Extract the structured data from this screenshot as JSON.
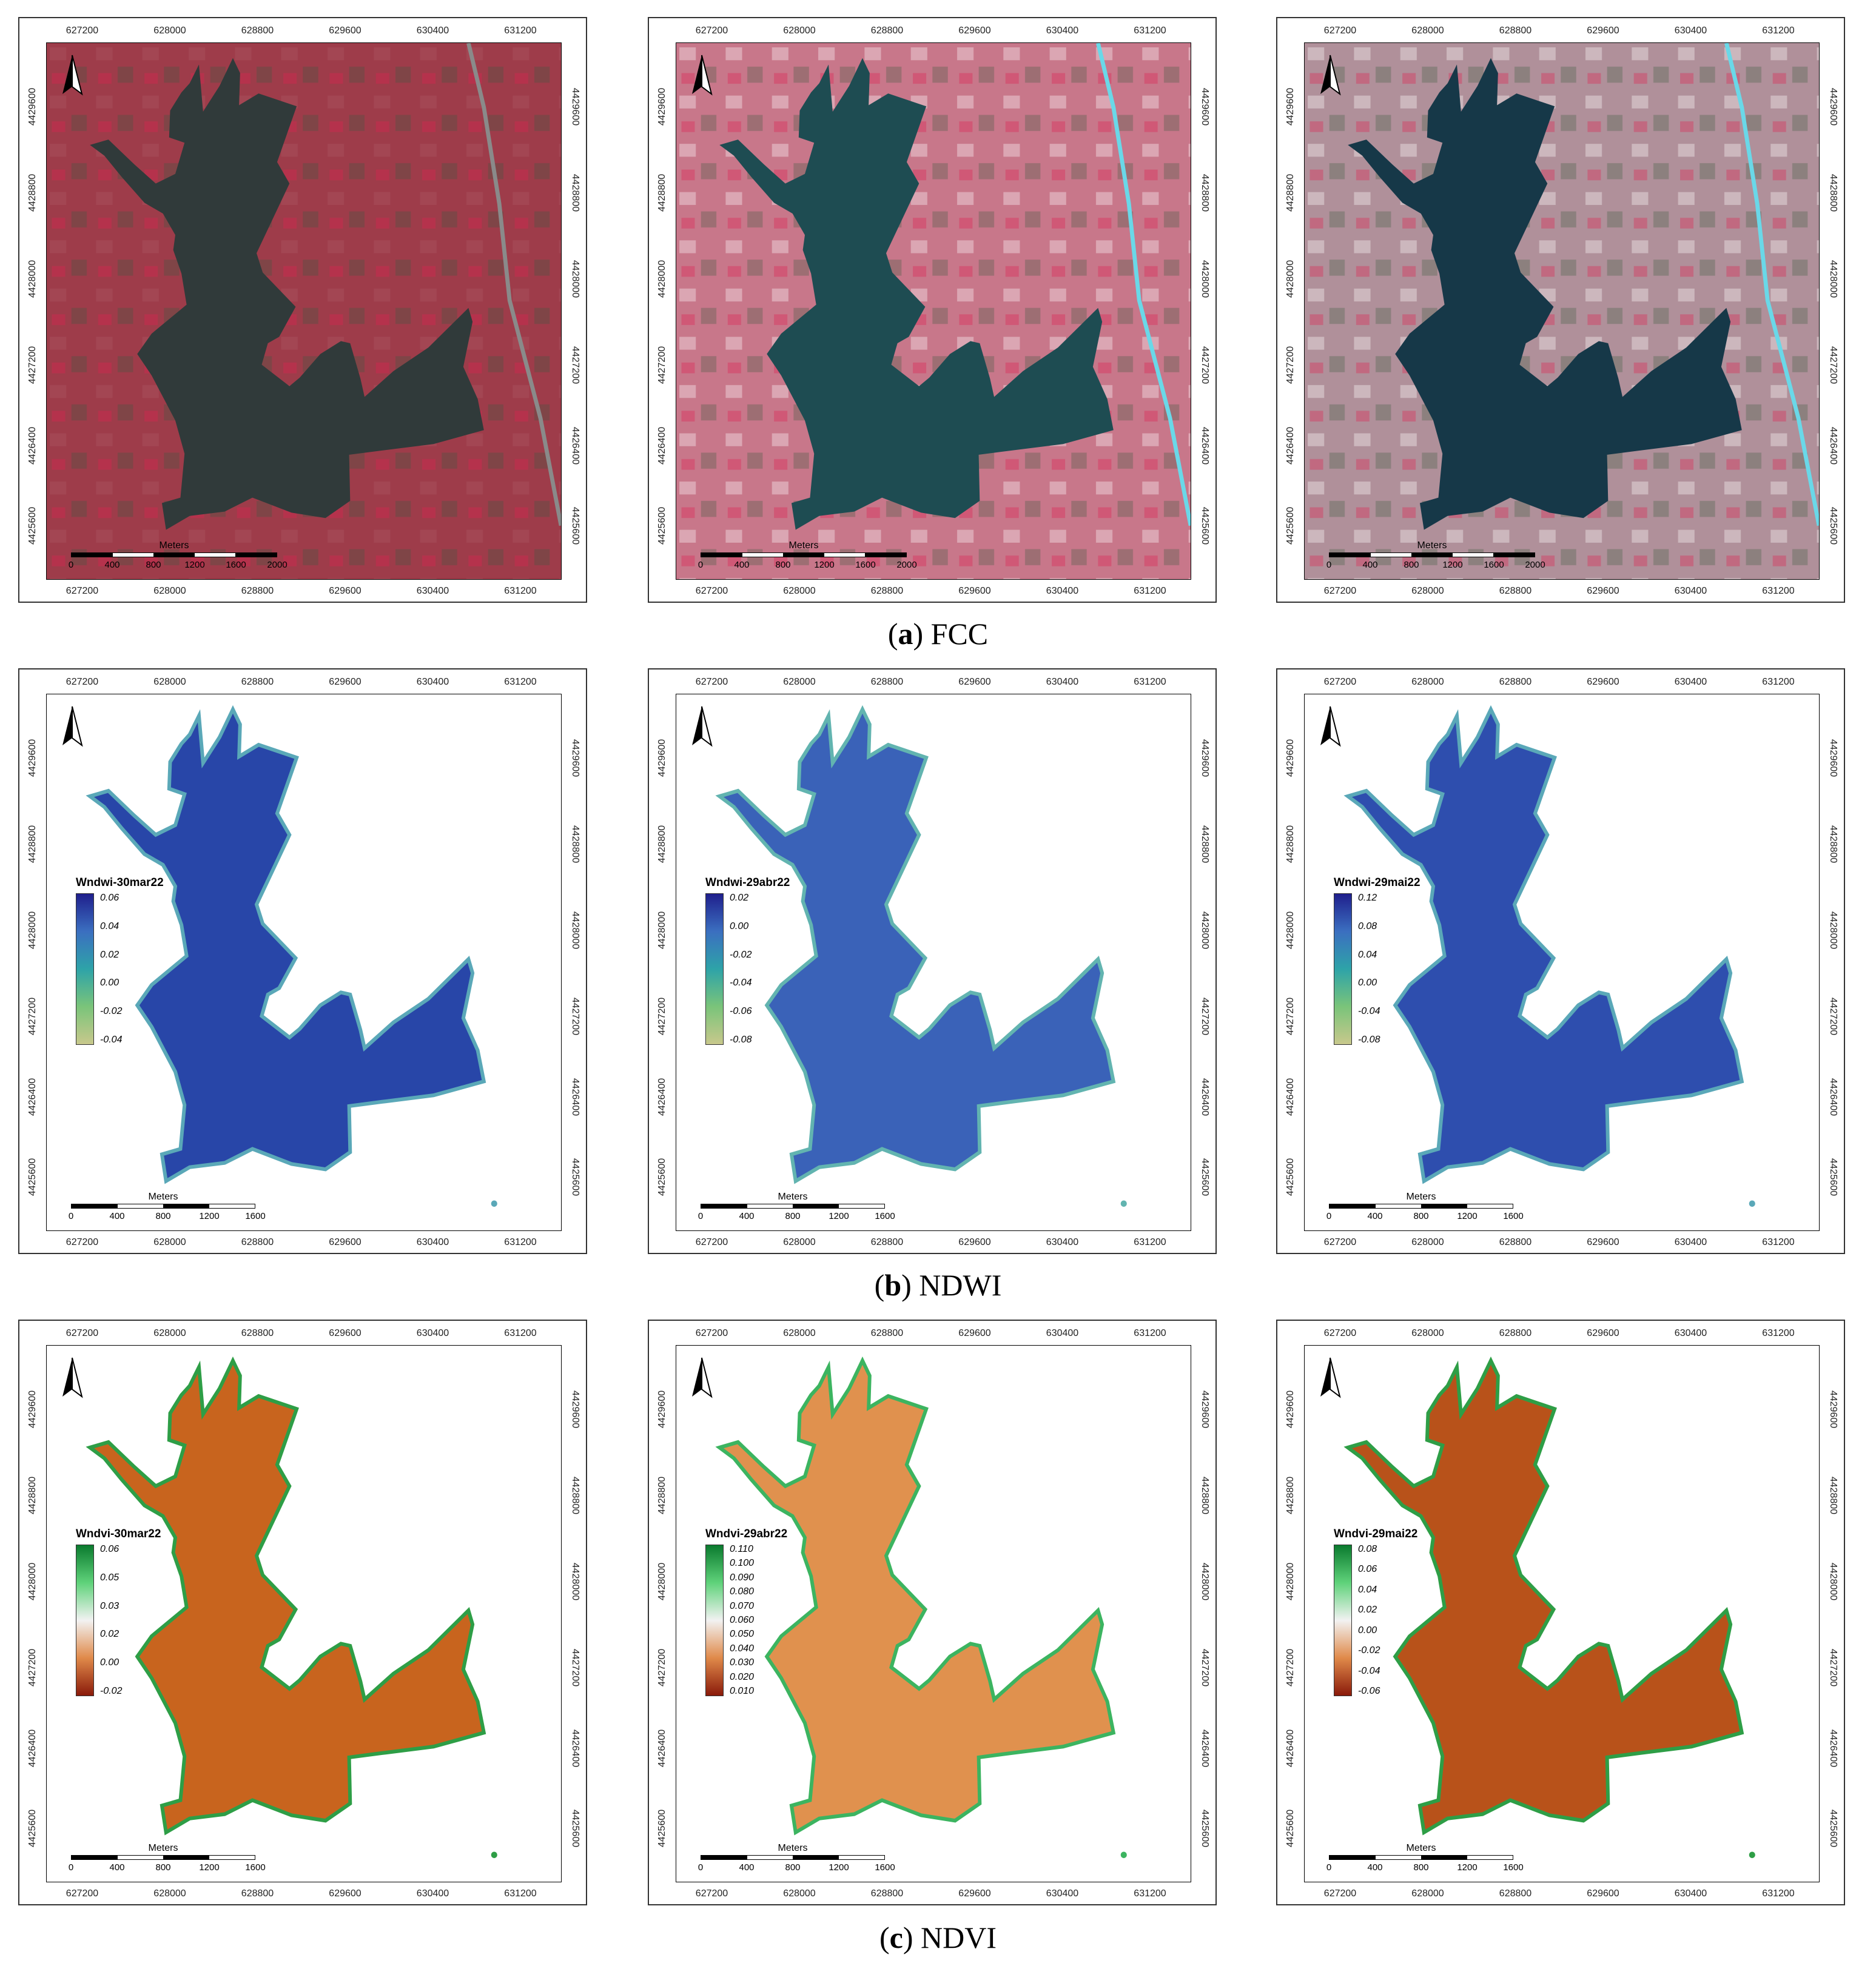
{
  "x_ticks": [
    "627200",
    "628000",
    "628800",
    "629600",
    "630400",
    "631200"
  ],
  "y_ticks": [
    "4425600",
    "4426400",
    "4427200",
    "4428000",
    "4428800",
    "4429600"
  ],
  "sections": [
    {
      "caption_letter": "a",
      "caption_text": " FCC",
      "panels": [
        {
          "type": "fcc",
          "scale_title": "Meters",
          "scale_labels": [
            "0",
            "400",
            "800",
            "1200",
            "1600",
            "2000"
          ],
          "colors": {
            "bg": "#9e3c4a",
            "water": "#303a3a"
          }
        },
        {
          "type": "fcc",
          "scale_title": "Meters",
          "scale_labels": [
            "0",
            "400",
            "800",
            "1200",
            "1600",
            "2000"
          ],
          "colors": {
            "bg": "#c8778a",
            "water": "#1e4c52"
          }
        },
        {
          "type": "fcc",
          "scale_title": "Meters",
          "scale_labels": [
            "0",
            "400",
            "800",
            "1200",
            "1600",
            "2000"
          ],
          "colors": {
            "bg": "#b0909a",
            "water": "#163848"
          }
        }
      ]
    },
    {
      "caption_letter": "b",
      "caption_text": " NDWI",
      "panels": [
        {
          "type": "index",
          "legend_title": "Wndwi-30mar22",
          "legend_labels": [
            "0.06",
            "0.04",
            "0.02",
            "0.00",
            "-0.02",
            "-0.04"
          ],
          "ramp": [
            "#1f1f8c",
            "#3b6fc0",
            "#2ea3a8",
            "#7ac47a",
            "#c8c88c"
          ],
          "colors": {
            "water": "#2846a8",
            "edge": "#5aa8b8"
          },
          "scale_title": "Meters",
          "scale_labels": [
            "0",
            "400",
            "800",
            "1200",
            "1600"
          ]
        },
        {
          "type": "index",
          "legend_title": "Wndwi-29abr22",
          "legend_labels": [
            "0.02",
            "0.00",
            "-0.02",
            "-0.04",
            "-0.06",
            "-0.08"
          ],
          "ramp": [
            "#1f1f8c",
            "#3b6fc0",
            "#2ea3a8",
            "#7ac47a",
            "#c8c88c"
          ],
          "colors": {
            "water": "#3a62b8",
            "edge": "#62b4b0"
          },
          "scale_title": "Meters",
          "scale_labels": [
            "0",
            "400",
            "800",
            "1200",
            "1600"
          ]
        },
        {
          "type": "index",
          "legend_title": "Wndwi-29mai22",
          "legend_labels": [
            "0.12",
            "0.08",
            "0.04",
            "0.00",
            "-0.04",
            "-0.08"
          ],
          "ramp": [
            "#1f1f8c",
            "#3b6fc0",
            "#2ea3a8",
            "#7ac47a",
            "#c8c88c"
          ],
          "colors": {
            "water": "#2e4eae",
            "edge": "#5aa8b8"
          },
          "scale_title": "Meters",
          "scale_labels": [
            "0",
            "400",
            "800",
            "1200",
            "1600"
          ]
        }
      ]
    },
    {
      "caption_letter": "c",
      "caption_text": " NDVI",
      "panels": [
        {
          "type": "index",
          "legend_title": "Wndvi-30mar22",
          "legend_labels": [
            "0.06",
            "0.05",
            "0.03",
            "0.02",
            "0.00",
            "-0.02"
          ],
          "ramp": [
            "#0a7a2e",
            "#5fd27a",
            "#f2f2f2",
            "#e08a4a",
            "#8a1a0a"
          ],
          "colors": {
            "water": "#c8641e",
            "edge": "#2e9e46"
          },
          "scale_title": "Meters",
          "scale_labels": [
            "0",
            "400",
            "800",
            "1200",
            "1600"
          ]
        },
        {
          "type": "index",
          "legend_title": "Wndvi-29abr22",
          "legend_labels": [
            "0.110",
            "0.100",
            "0.090",
            "0.080",
            "0.070",
            "0.060",
            "0.050",
            "0.040",
            "0.030",
            "0.020",
            "0.010"
          ],
          "ramp": [
            "#0a7a2e",
            "#5fd27a",
            "#f2f2f2",
            "#e08a4a",
            "#8a1a0a"
          ],
          "colors": {
            "water": "#e0914e",
            "edge": "#3cb460"
          },
          "scale_title": "Meters",
          "scale_labels": [
            "0",
            "400",
            "800",
            "1200",
            "1600"
          ]
        },
        {
          "type": "index",
          "legend_title": "Wndvi-29mai22",
          "legend_labels": [
            "0.08",
            "0.06",
            "0.04",
            "0.02",
            "0.00",
            "-0.02",
            "-0.04",
            "-0.06"
          ],
          "ramp": [
            "#0a7a2e",
            "#5fd27a",
            "#f2f2f2",
            "#e08a4a",
            "#8a1a0a"
          ],
          "colors": {
            "water": "#b8521a",
            "edge": "#2e9e46"
          },
          "scale_title": "Meters",
          "scale_labels": [
            "0",
            "400",
            "800",
            "1200",
            "1600"
          ]
        }
      ]
    }
  ]
}
